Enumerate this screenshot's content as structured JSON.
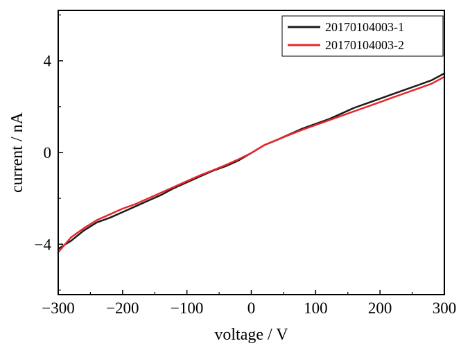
{
  "chart_data": {
    "type": "line",
    "xlabel": "voltage / V",
    "ylabel": "current / nA",
    "xlim": [
      -300,
      300
    ],
    "ylim": [
      -6.2,
      6.2
    ],
    "xticks": [
      -300,
      -200,
      -100,
      0,
      100,
      200,
      300
    ],
    "xtick_labels": [
      "−300",
      "−200",
      "−100",
      "0",
      "100",
      "200",
      "300"
    ],
    "yticks": [
      -4,
      0,
      4
    ],
    "ytick_labels": [
      "−4",
      "0",
      "4"
    ],
    "grid": false,
    "legend_position": "top-right",
    "x": [
      -300,
      -280,
      -260,
      -240,
      -220,
      -200,
      -180,
      -160,
      -140,
      -120,
      -100,
      -80,
      -60,
      -40,
      -20,
      0,
      20,
      40,
      60,
      80,
      100,
      120,
      140,
      160,
      180,
      200,
      220,
      240,
      260,
      280,
      300
    ],
    "series": [
      {
        "name": "20170104003-1",
        "color": "#1a1a1a",
        "values": [
          -4.2,
          -3.85,
          -3.4,
          -3.05,
          -2.85,
          -2.6,
          -2.35,
          -2.1,
          -1.85,
          -1.55,
          -1.3,
          -1.05,
          -0.8,
          -0.6,
          -0.35,
          -0.02,
          0.32,
          0.55,
          0.8,
          1.05,
          1.25,
          1.45,
          1.7,
          1.95,
          2.15,
          2.35,
          2.55,
          2.75,
          2.95,
          3.15,
          3.45
        ]
      },
      {
        "name": "20170104003-2",
        "color": "#e8262b",
        "values": [
          -4.35,
          -3.7,
          -3.3,
          -2.95,
          -2.7,
          -2.45,
          -2.25,
          -2.0,
          -1.75,
          -1.5,
          -1.25,
          -1.0,
          -0.78,
          -0.55,
          -0.3,
          -0.02,
          0.32,
          0.55,
          0.78,
          1.0,
          1.2,
          1.4,
          1.6,
          1.8,
          2.0,
          2.2,
          2.4,
          2.6,
          2.8,
          3.0,
          3.3
        ]
      }
    ]
  }
}
